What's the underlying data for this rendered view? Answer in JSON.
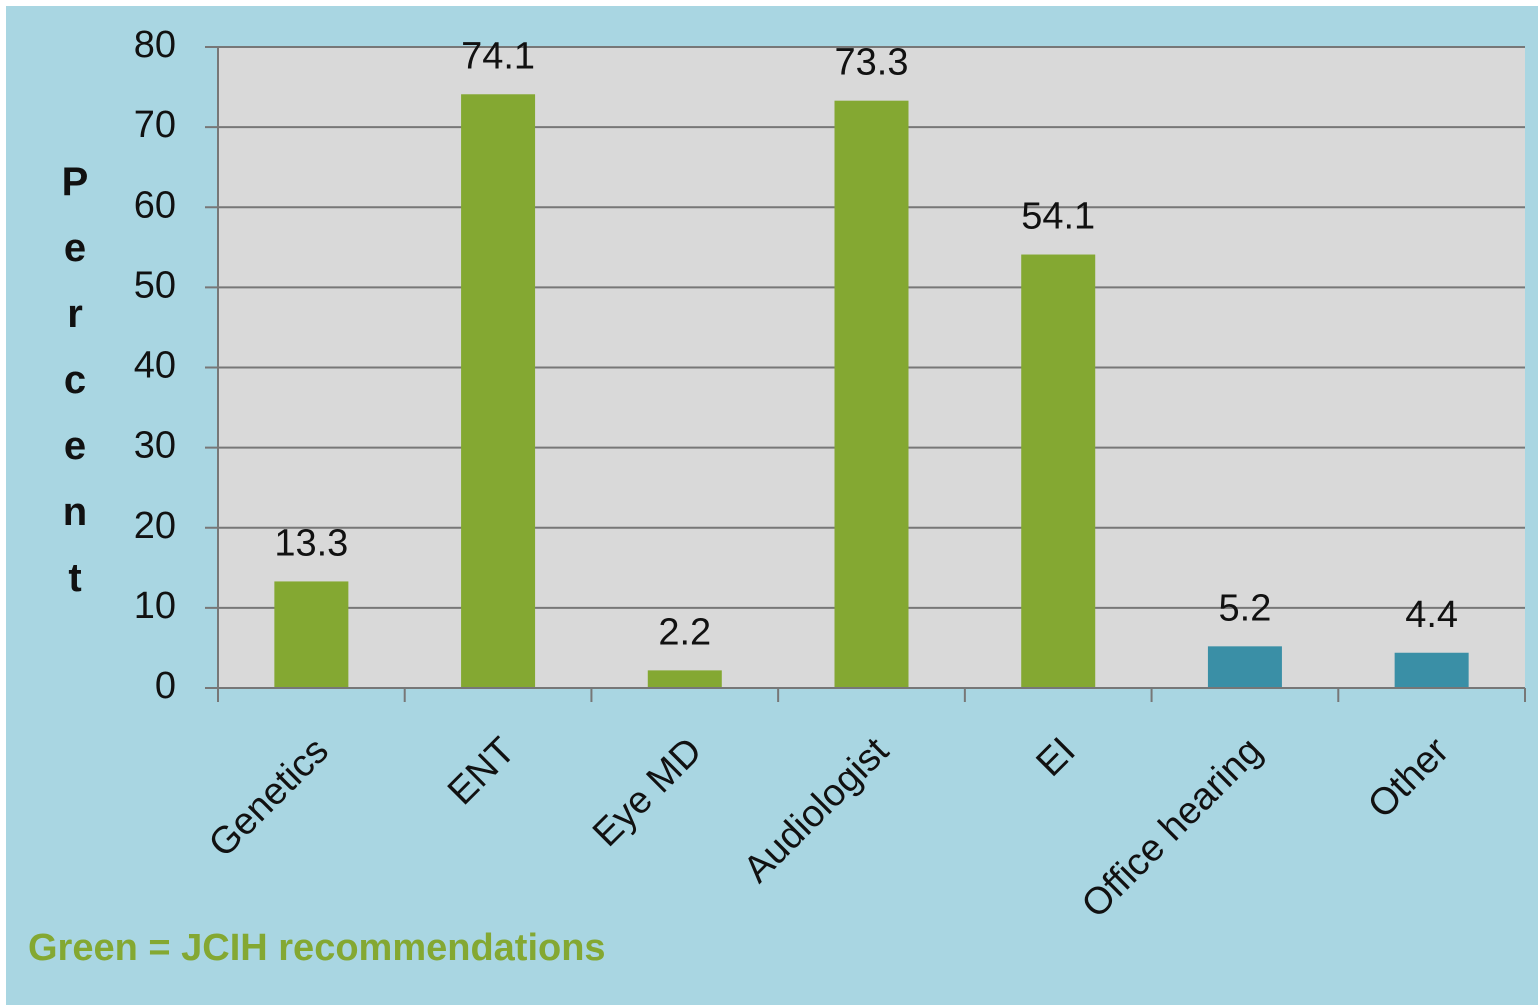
{
  "chart_data": {
    "type": "bar",
    "categories": [
      "Genetics",
      "ENT",
      "Eye MD",
      "Audiologist",
      "EI",
      "Office hearing",
      "Other"
    ],
    "values": [
      13.3,
      74.1,
      2.2,
      73.3,
      54.1,
      5.2,
      4.4
    ],
    "colors": [
      "#84a832",
      "#84a832",
      "#84a832",
      "#84a832",
      "#84a832",
      "#3a8fa6",
      "#3a8fa6"
    ],
    "ylabel": "Percent",
    "annotation": "Green = JCIH recommendations",
    "ylim": [
      0,
      80
    ],
    "yticks": [
      0,
      10,
      20,
      30,
      40,
      50,
      60,
      70,
      80
    ],
    "grid": true
  }
}
